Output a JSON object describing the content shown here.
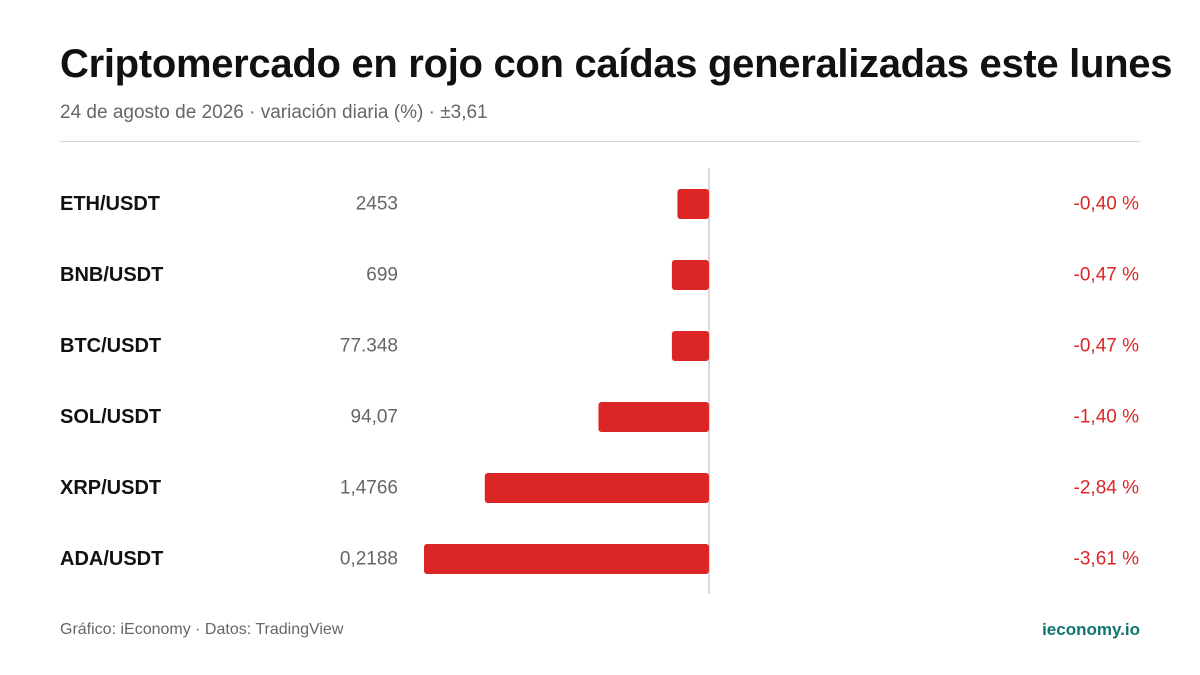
{
  "header": {
    "title": "Criptomercado en rojo con caídas generalizadas este lunes",
    "subtitle": "24 de agosto de 2026 · variación diaria (%) · ±3,61"
  },
  "footer": {
    "credit": "Gráfico: iEconomy · Datos: TradingView",
    "brand": "ieconomy.io"
  },
  "colors": {
    "negative": "#dc2626",
    "brand": "#0f766e",
    "axis": "#d9d9d9"
  },
  "chart_data": {
    "type": "bar",
    "orientation": "horizontal",
    "categories": [
      "ETH/USDT",
      "BNB/USDT",
      "BTC/USDT",
      "SOL/USDT",
      "XRP/USDT",
      "ADA/USDT"
    ],
    "prices": [
      "2453",
      "699",
      "77.348",
      "94,07",
      "1,4766",
      "0,2188"
    ],
    "values": [
      -0.4,
      -0.47,
      -0.47,
      -1.4,
      -2.84,
      -3.61
    ],
    "value_labels": [
      "-0,40 %",
      "-0,47 %",
      "-0,47 %",
      "-1,40 %",
      "-2,84 %",
      "-3,61 %"
    ],
    "xlim": [
      -3.61,
      3.61
    ],
    "grid": false
  }
}
